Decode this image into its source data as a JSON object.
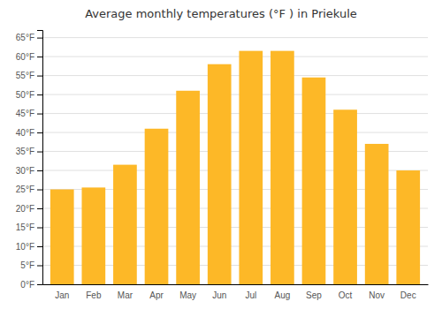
{
  "chart_data": {
    "type": "bar",
    "title": "Average monthly temperatures (°F ) in Priekule",
    "categories": [
      "Jan",
      "Feb",
      "Mar",
      "Apr",
      "May",
      "Jun",
      "Jul",
      "Aug",
      "Sep",
      "Oct",
      "Nov",
      "Dec"
    ],
    "values": [
      25,
      25.5,
      31.5,
      41,
      51,
      58,
      61.5,
      61.5,
      54.5,
      46,
      37,
      30
    ],
    "color": "#FDB827",
    "ylim": [
      0,
      67
    ],
    "yticks": [
      {
        "value": 0,
        "label": "0°F"
      },
      {
        "value": 5,
        "label": "5°F"
      },
      {
        "value": 10,
        "label": "10°F"
      },
      {
        "value": 15,
        "label": "15°F"
      },
      {
        "value": 20,
        "label": "20°F"
      },
      {
        "value": 25,
        "label": "25°F"
      },
      {
        "value": 30,
        "label": "30°F"
      },
      {
        "value": 35,
        "label": "35°F"
      },
      {
        "value": 40,
        "label": "40°F"
      },
      {
        "value": 45,
        "label": "45°F"
      },
      {
        "value": 50,
        "label": "50°F"
      },
      {
        "value": 55,
        "label": "55°F"
      },
      {
        "value": 60,
        "label": "60°F"
      },
      {
        "value": 65,
        "label": "65°F"
      }
    ],
    "grid": true
  }
}
